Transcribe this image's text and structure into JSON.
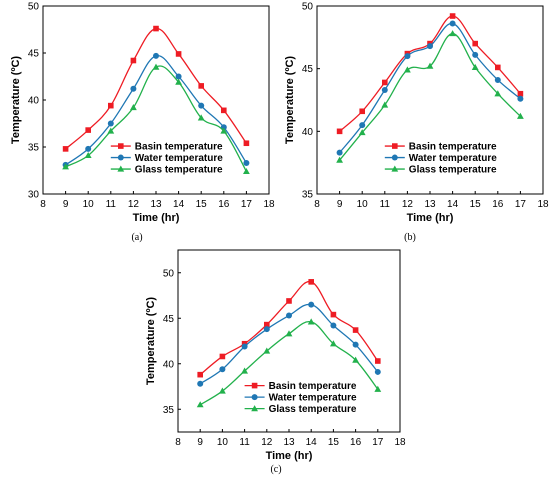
{
  "chart_data": [
    {
      "type": "line",
      "caption": "(a)",
      "xlabel": "Time (hr)",
      "ylabel": "Temperature (ºC)",
      "xlim": [
        8,
        18
      ],
      "ylim": [
        30,
        50
      ],
      "xticks": [
        8,
        9,
        10,
        11,
        12,
        13,
        14,
        15,
        16,
        17,
        18
      ],
      "yticks": [
        30,
        35,
        40,
        45,
        50
      ],
      "legend": "bottom-center",
      "grid": false,
      "x": [
        9,
        10,
        11,
        12,
        13,
        14,
        15,
        16,
        17
      ],
      "series": [
        {
          "name": "Basin temperature",
          "color": "#ee1c24",
          "marker": "square",
          "values": [
            34.8,
            36.8,
            39.4,
            44.2,
            47.6,
            44.9,
            41.5,
            38.9,
            35.4
          ]
        },
        {
          "name": "Water temperature",
          "color": "#1f77b4",
          "marker": "circle",
          "values": [
            33.1,
            34.8,
            37.5,
            41.2,
            44.7,
            42.5,
            39.4,
            37.1,
            33.3
          ]
        },
        {
          "name": "Glass temperature",
          "color": "#22b14c",
          "marker": "triangle",
          "values": [
            32.9,
            34.1,
            36.7,
            39.2,
            43.5,
            41.9,
            38.1,
            36.7,
            32.4
          ]
        }
      ]
    },
    {
      "type": "line",
      "caption": "(b)",
      "xlabel": "Time (hr)",
      "ylabel": "Temperature (ºC)",
      "xlim": [
        8,
        18
      ],
      "ylim": [
        35,
        50
      ],
      "xticks": [
        8,
        9,
        10,
        11,
        12,
        13,
        14,
        15,
        16,
        17,
        18
      ],
      "yticks": [
        35,
        40,
        45,
        50
      ],
      "legend": "bottom-center",
      "grid": false,
      "x": [
        9,
        10,
        11,
        12,
        13,
        14,
        15,
        16,
        17
      ],
      "series": [
        {
          "name": "Basin temperature",
          "color": "#ee1c24",
          "marker": "square",
          "values": [
            40.0,
            41.6,
            43.9,
            46.2,
            47.0,
            49.2,
            47.0,
            45.1,
            43.0
          ]
        },
        {
          "name": "Water temperature",
          "color": "#1f77b4",
          "marker": "circle",
          "values": [
            38.3,
            40.5,
            43.3,
            46.0,
            46.8,
            48.6,
            46.1,
            44.1,
            42.6
          ]
        },
        {
          "name": "Glass temperature",
          "color": "#22b14c",
          "marker": "triangle",
          "values": [
            37.7,
            39.9,
            42.1,
            44.9,
            45.2,
            47.8,
            45.1,
            43.0,
            41.2
          ]
        }
      ]
    },
    {
      "type": "line",
      "caption": "(c)",
      "xlabel": "Time (hr)",
      "ylabel": "Temperature (ºC)",
      "xlim": [
        8,
        18
      ],
      "ylim": [
        32.5,
        52.5
      ],
      "xticks": [
        8,
        9,
        10,
        11,
        12,
        13,
        14,
        15,
        16,
        17,
        18
      ],
      "yticks": [
        35,
        40,
        45,
        50
      ],
      "legend": "bottom-center",
      "grid": false,
      "x": [
        9,
        10,
        11,
        12,
        13,
        14,
        15,
        16,
        17
      ],
      "series": [
        {
          "name": "Basin temperature",
          "color": "#ee1c24",
          "marker": "square",
          "values": [
            38.8,
            40.8,
            42.2,
            44.3,
            46.9,
            49.0,
            45.4,
            43.7,
            40.3
          ]
        },
        {
          "name": "Water temperature",
          "color": "#1f77b4",
          "marker": "circle",
          "values": [
            37.8,
            39.4,
            41.9,
            43.8,
            45.3,
            46.5,
            44.2,
            42.1,
            39.1
          ]
        },
        {
          "name": "Glass temperature",
          "color": "#22b14c",
          "marker": "triangle",
          "values": [
            35.5,
            37.0,
            39.2,
            41.4,
            43.3,
            44.6,
            42.2,
            40.4,
            37.2
          ]
        }
      ]
    }
  ]
}
